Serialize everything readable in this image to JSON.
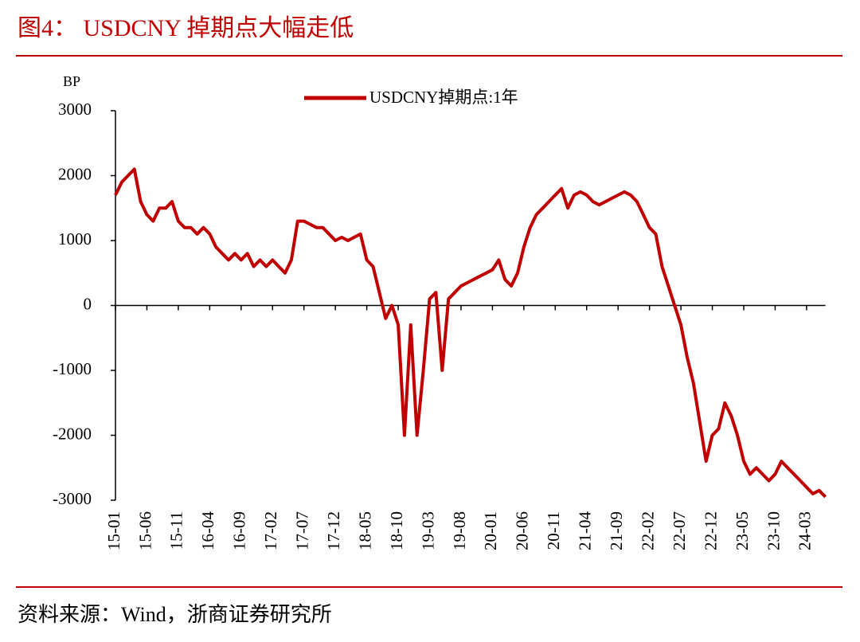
{
  "chart_data": {
    "type": "line",
    "title": "图4：  USDCNY 掉期点大幅走低",
    "source": "资料来源：Wind，浙商证券研究所",
    "ylabel": "BP",
    "x": [
      "15-01",
      "15-02",
      "15-03",
      "15-04",
      "15-05",
      "15-06",
      "15-07",
      "15-08",
      "15-09",
      "15-10",
      "15-11",
      "15-12",
      "16-01",
      "16-02",
      "16-03",
      "16-04",
      "16-05",
      "16-06",
      "16-07",
      "16-08",
      "16-09",
      "16-10",
      "16-11",
      "16-12",
      "17-01",
      "17-02",
      "17-03",
      "17-04",
      "17-05",
      "17-06",
      "17-07",
      "17-08",
      "17-09",
      "17-10",
      "17-11",
      "17-12",
      "18-01",
      "18-02",
      "18-03",
      "18-04",
      "18-05",
      "18-06",
      "18-07",
      "18-08",
      "18-09",
      "18-10",
      "18-11",
      "18-12",
      "19-01",
      "19-02",
      "19-03",
      "19-04",
      "19-05",
      "19-06",
      "19-07",
      "19-08",
      "19-09",
      "19-10",
      "19-11",
      "19-12",
      "20-01",
      "20-02",
      "20-03",
      "20-04",
      "20-05",
      "20-06",
      "20-07",
      "20-08",
      "20-09",
      "20-10",
      "20-11",
      "20-12",
      "21-01",
      "21-02",
      "21-03",
      "21-04",
      "21-05",
      "21-06",
      "21-07",
      "21-08",
      "21-09",
      "21-10",
      "21-11",
      "21-12",
      "22-01",
      "22-02",
      "22-03",
      "22-04",
      "22-05",
      "22-06",
      "22-07",
      "22-08",
      "22-09",
      "22-10",
      "22-11",
      "22-12",
      "23-01",
      "23-02",
      "23-03",
      "23-04",
      "23-05",
      "23-06",
      "23-07",
      "23-08",
      "23-09",
      "23-10",
      "23-11",
      "23-12",
      "24-01",
      "24-02",
      "24-03",
      "24-04",
      "24-05",
      "24-06"
    ],
    "xticks": [
      "15-01",
      "15-06",
      "15-11",
      "16-04",
      "16-09",
      "17-02",
      "17-07",
      "17-12",
      "18-05",
      "18-10",
      "19-03",
      "19-08",
      "20-01",
      "20-06",
      "20-11",
      "21-04",
      "21-09",
      "22-02",
      "22-07",
      "22-12",
      "23-05",
      "23-10",
      "24-03"
    ],
    "series": [
      {
        "name": "USDCNY掉期点:1年",
        "color": "#c00000",
        "values": [
          1700,
          1900,
          2000,
          2100,
          1600,
          1400,
          1300,
          1500,
          1500,
          1600,
          1300,
          1200,
          1200,
          1100,
          1200,
          1100,
          900,
          800,
          700,
          800,
          700,
          800,
          600,
          700,
          600,
          700,
          600,
          500,
          700,
          1300,
          1300,
          1250,
          1200,
          1200,
          1100,
          1000,
          1050,
          1000,
          1050,
          1100,
          700,
          600,
          200,
          -200,
          0,
          -300,
          -2000,
          -300,
          -2000,
          -1000,
          100,
          200,
          -1000,
          100,
          200,
          300,
          350,
          400,
          450,
          500,
          550,
          700,
          400,
          300,
          500,
          900,
          1200,
          1400,
          1500,
          1600,
          1700,
          1800,
          1500,
          1700,
          1750,
          1700,
          1600,
          1550,
          1600,
          1650,
          1700,
          1750,
          1700,
          1600,
          1400,
          1200,
          1100,
          600,
          300,
          0,
          -300,
          -800,
          -1200,
          -1800,
          -2400,
          -2000,
          -1900,
          -1500,
          -1700,
          -2000,
          -2400,
          -2600,
          -2500,
          -2600,
          -2700,
          -2600,
          -2400,
          -2500,
          -2600,
          -2700,
          -2800,
          -2900,
          -2850,
          -2950
        ]
      }
    ],
    "ylim": [
      -3000,
      3000
    ],
    "yticks": [
      -3000,
      -2000,
      -1000,
      0,
      1000,
      2000,
      3000
    ]
  }
}
